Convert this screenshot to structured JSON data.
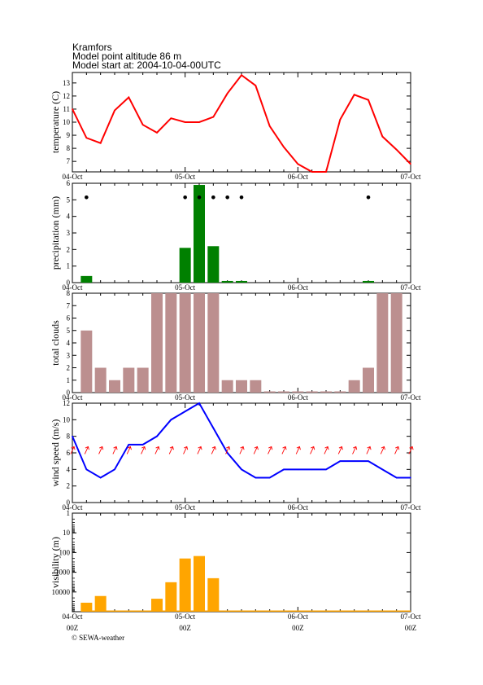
{
  "header": {
    "location": "Kramfors",
    "altitude": "Model point altitude  86 m",
    "model_start": "Model start at: 2004-10-04-00UTC"
  },
  "footer": {
    "copyright": "© SEWA-weather"
  },
  "chart_data": [
    {
      "type": "line",
      "panel": "temperature",
      "ylabel": "temperature (C)",
      "ylim": [
        6.2,
        13.8
      ],
      "yticks": [
        7,
        8,
        9,
        10,
        11,
        12,
        13
      ],
      "x_hours_range": [
        0,
        72
      ],
      "x_tick_labels": [
        "04-Oct",
        "05-Oct",
        "06-Oct",
        "07-Oct"
      ],
      "color": "#ff0000",
      "x_hours": [
        0,
        3,
        6,
        9,
        12,
        15,
        18,
        21,
        24,
        27,
        30,
        33,
        36,
        39,
        42,
        45,
        48,
        51,
        54,
        57,
        60,
        63,
        66,
        69,
        72
      ],
      "values": [
        11.0,
        8.8,
        8.4,
        10.9,
        11.9,
        9.8,
        9.2,
        10.3,
        10.0,
        10.0,
        10.4,
        12.2,
        13.6,
        12.8,
        9.7,
        8.1,
        6.8,
        6.2,
        6.2,
        10.2,
        12.1,
        11.7,
        8.9,
        7.9,
        6.8
      ]
    },
    {
      "type": "bar",
      "panel": "precipitation",
      "ylabel": "precipitation (mm)",
      "ylim": [
        0,
        6
      ],
      "yticks": [
        0,
        1,
        2,
        3,
        4,
        5,
        6
      ],
      "x_hours_range": [
        0,
        72
      ],
      "x_tick_labels": [
        "04-Oct",
        "05-Oct",
        "06-Oct",
        "07-Oct"
      ],
      "color": "#008000",
      "x_hours": [
        3,
        24,
        27,
        30,
        33,
        36,
        63
      ],
      "values": [
        0.4,
        2.1,
        5.9,
        2.2,
        0.1,
        0.1,
        0.1
      ],
      "markers_x_hours": [
        3,
        24,
        27,
        30,
        33,
        36,
        63
      ],
      "markers_y": 5.15
    },
    {
      "type": "bar",
      "panel": "clouds",
      "ylabel": "total clouds",
      "ylim": [
        0,
        8
      ],
      "yticks": [
        0,
        1,
        2,
        3,
        4,
        5,
        6,
        7,
        8
      ],
      "x_hours_range": [
        0,
        72
      ],
      "x_tick_labels": [
        "04-Oct",
        "05-Oct",
        "06-Oct",
        "07-Oct"
      ],
      "color": "#bc8f8f",
      "x_hours": [
        3,
        6,
        9,
        12,
        15,
        18,
        21,
        24,
        27,
        30,
        33,
        36,
        39,
        42,
        45,
        48,
        51,
        54,
        57,
        60,
        63,
        66,
        69
      ],
      "values": [
        5,
        2,
        1,
        2,
        2,
        8,
        8,
        8,
        8,
        8,
        1,
        1,
        1,
        0,
        0,
        0,
        0,
        0,
        0,
        1,
        2,
        8,
        8
      ]
    },
    {
      "type": "line",
      "panel": "wind",
      "ylabel": "wind speed (m/s)",
      "ylim": [
        0,
        12
      ],
      "yticks": [
        0,
        2,
        4,
        6,
        8,
        10,
        12
      ],
      "x_hours_range": [
        0,
        72
      ],
      "x_tick_labels": [
        "04-Oct",
        "05-Oct",
        "06-Oct",
        "07-Oct"
      ],
      "color": "#0000ff",
      "x_hours": [
        0,
        3,
        6,
        9,
        12,
        15,
        18,
        21,
        24,
        27,
        30,
        33,
        36,
        39,
        42,
        45,
        48,
        51,
        54,
        57,
        60,
        63,
        66,
        69,
        72
      ],
      "values": [
        8,
        4,
        3,
        4,
        7,
        7,
        8,
        10,
        11,
        12,
        9,
        6,
        4,
        3,
        3,
        4,
        4,
        4,
        4,
        5,
        5,
        5,
        4,
        3,
        3
      ],
      "arrow_color": "#ff0000",
      "arrow_y": 6.3,
      "arrow_x_hours": [
        0,
        3,
        6,
        9,
        12,
        15,
        18,
        21,
        24,
        27,
        30,
        33,
        36,
        39,
        42,
        45,
        48,
        51,
        54,
        57,
        60,
        63,
        66,
        69,
        72
      ]
    },
    {
      "type": "bar",
      "panel": "visibility",
      "ylabel": "visibility (m)",
      "yscale": "log-inverted",
      "ylim": [
        1,
        100000
      ],
      "yticks": [
        1,
        10,
        100,
        1000,
        10000
      ],
      "x_hours_range": [
        0,
        72
      ],
      "x_tick_labels": [
        "04-Oct",
        "05-Oct",
        "06-Oct",
        "07-Oct"
      ],
      "x_tick_labels_bottom": [
        "00Z",
        "00Z",
        "00Z",
        "00Z"
      ],
      "color": "#ffa500",
      "x_hours": [
        3,
        6,
        18,
        21,
        24,
        27,
        30
      ],
      "values": [
        35000,
        16000,
        22000,
        3200,
        200,
        150,
        2000
      ]
    }
  ]
}
